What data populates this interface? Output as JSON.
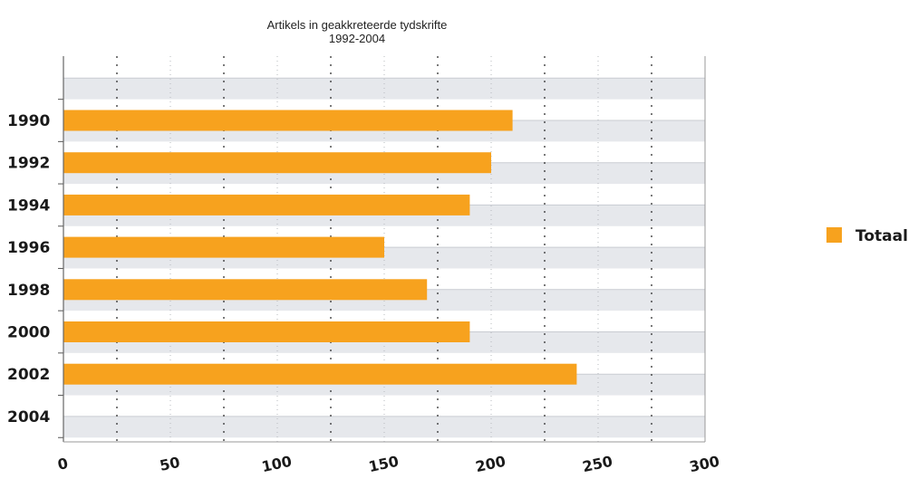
{
  "chart_data": {
    "type": "bar",
    "orientation": "horizontal",
    "title": "Artikels in geakkreteerde tydskrifte",
    "subtitle": "1992-2004",
    "categories": [
      "1990",
      "1992",
      "1994",
      "1996",
      "1998",
      "2000",
      "2002",
      "2004"
    ],
    "series": [
      {
        "name": "Totaal",
        "values": [
          210,
          200,
          190,
          150,
          170,
          190,
          240,
          null
        ]
      }
    ],
    "xlim": [
      0,
      300
    ],
    "xticks": [
      "0",
      "50",
      "100",
      "150",
      "200",
      "250",
      "300"
    ],
    "xlabel": "",
    "ylabel": "",
    "grid": true,
    "legend_position": "right",
    "colors": {
      "bar": "#f7a21e",
      "band": "#e6e8ec",
      "grid": "#333333"
    }
  }
}
